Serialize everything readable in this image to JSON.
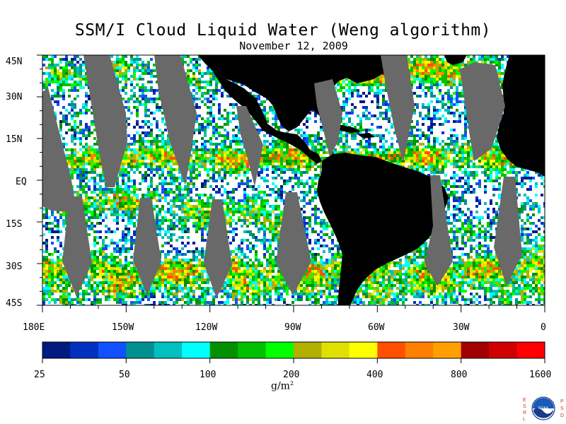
{
  "title": "SSM/I Cloud Liquid Water (Weng algorithm)",
  "subtitle": "November 12, 2009",
  "lat_labels": [
    "45N",
    "30N",
    "15N",
    "EQ",
    "15S",
    "30S",
    "45S"
  ],
  "lon_labels": [
    "180E",
    "150W",
    "120W",
    "90W",
    "60W",
    "30W",
    "0"
  ],
  "colorbar": {
    "ticks": [
      "25",
      "50",
      "100",
      "200",
      "400",
      "800",
      "1600"
    ],
    "unit_base": "g/m",
    "unit_exp": "2",
    "colors": [
      "#001a80",
      "#0030c0",
      "#1050ff",
      "#009090",
      "#00c0c0",
      "#00ffff",
      "#009000",
      "#00c000",
      "#00ff00",
      "#b0b000",
      "#e0e000",
      "#ffff00",
      "#ff5000",
      "#ff8000",
      "#ffa000",
      "#a00000",
      "#d00000",
      "#ff0000"
    ]
  },
  "logo": {
    "left_letters": [
      "E",
      "S",
      "R",
      "L"
    ],
    "right_letters": [
      "P",
      "S",
      "D"
    ],
    "seal_text": "NOAA"
  },
  "colors": {
    "land": "#000000",
    "missing": "#696969",
    "ocean_clear": "#ffffff"
  }
}
